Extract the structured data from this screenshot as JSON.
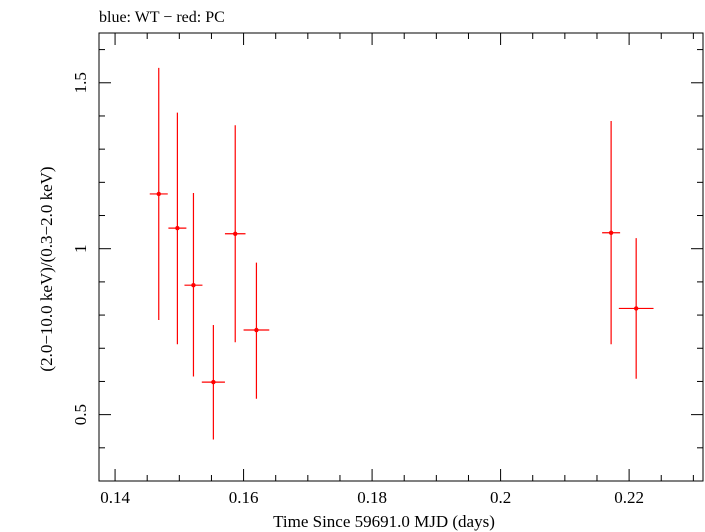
{
  "chart_data": {
    "type": "scatter",
    "title": "blue: WT − red: PC",
    "xlabel": "Time Since 59691.0 MJD (days)",
    "ylabel": "(2.0−10.0 keV)/(0.3−2.0 keV)",
    "xlim": [
      0.1375,
      0.2315
    ],
    "ylim": [
      0.3,
      1.65
    ],
    "x_ticks": [
      {
        "value": 0.14,
        "label": "0.14"
      },
      {
        "value": 0.16,
        "label": "0.16"
      },
      {
        "value": 0.18,
        "label": "0.18"
      },
      {
        "value": 0.2,
        "label": "0.2"
      },
      {
        "value": 0.22,
        "label": "0.22"
      }
    ],
    "y_ticks": [
      {
        "value": 0.5,
        "label": "0.5"
      },
      {
        "value": 1.0,
        "label": "1"
      },
      {
        "value": 1.5,
        "label": "1.5"
      }
    ],
    "grid": false,
    "series": [
      {
        "name": "PC",
        "color": "#ff0000",
        "points": [
          {
            "x": 0.1468,
            "xerr": 0.0014,
            "y": 1.165,
            "ylo": 0.785,
            "yhi": 1.545
          },
          {
            "x": 0.1497,
            "xerr": 0.0014,
            "y": 1.062,
            "ylo": 0.712,
            "yhi": 1.41
          },
          {
            "x": 0.1522,
            "xerr": 0.0014,
            "y": 0.89,
            "ylo": 0.615,
            "yhi": 1.168
          },
          {
            "x": 0.1553,
            "xerr": 0.0018,
            "y": 0.598,
            "ylo": 0.425,
            "yhi": 0.77
          },
          {
            "x": 0.1587,
            "xerr": 0.0016,
            "y": 1.045,
            "ylo": 0.718,
            "yhi": 1.372
          },
          {
            "x": 0.162,
            "xerr": 0.002,
            "y": 0.755,
            "ylo": 0.548,
            "yhi": 0.958
          },
          {
            "x": 0.2172,
            "xerr": 0.0014,
            "y": 1.048,
            "ylo": 0.712,
            "yhi": 1.385
          },
          {
            "x": 0.2211,
            "xerr": 0.0027,
            "y": 0.82,
            "ylo": 0.608,
            "yhi": 1.032
          }
        ]
      }
    ]
  }
}
